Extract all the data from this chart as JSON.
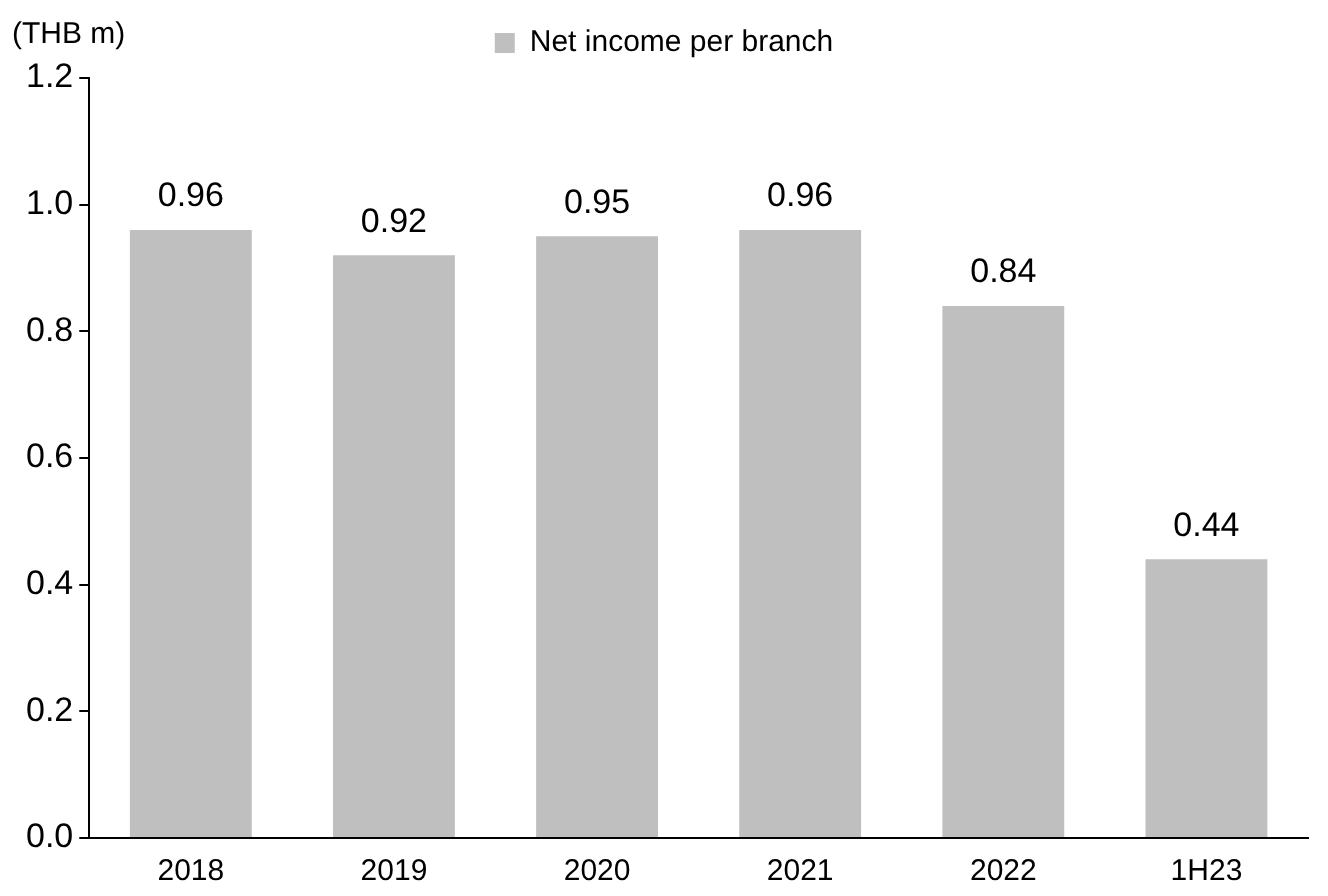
{
  "chart_data": {
    "type": "bar",
    "ylabel": "(THB m)",
    "categories": [
      "2018",
      "2019",
      "2020",
      "2021",
      "2022",
      "1H23"
    ],
    "series": [
      {
        "name": "Net income per branch",
        "color": "#bfbfbf",
        "values": [
          0.96,
          0.92,
          0.95,
          0.96,
          0.84,
          0.44
        ]
      }
    ],
    "ylim": [
      0,
      1.2
    ],
    "yticks": [
      {
        "value": 0,
        "label": "0.0"
      },
      {
        "value": 0.2,
        "label": "0.2"
      },
      {
        "value": 0.4,
        "label": "0.4"
      },
      {
        "value": 0.6,
        "label": "0.6"
      },
      {
        "value": 0.8,
        "label": "0.8"
      },
      {
        "value": 1,
        "label": "1.0"
      },
      {
        "value": 1.2,
        "label": "1.2"
      }
    ],
    "data_labels": true,
    "grid": false,
    "legend": "top"
  }
}
